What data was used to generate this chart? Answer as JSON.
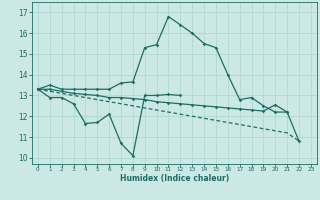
{
  "xlabel": "Humidex (Indice chaleur)",
  "x": [
    0,
    1,
    2,
    3,
    4,
    5,
    6,
    7,
    8,
    9,
    10,
    11,
    12,
    13,
    14,
    15,
    16,
    17,
    18,
    19,
    20,
    21,
    22,
    23
  ],
  "line1": [
    13.3,
    13.5,
    13.3,
    13.3,
    13.3,
    13.3,
    13.3,
    13.6,
    13.65,
    15.3,
    15.45,
    16.8,
    16.4,
    16.0,
    15.5,
    15.3,
    14.0,
    12.8,
    12.9,
    12.5,
    12.2,
    12.2,
    null,
    null
  ],
  "line2": [
    13.3,
    12.9,
    12.9,
    12.6,
    11.65,
    11.7,
    12.1,
    10.7,
    10.1,
    13.0,
    13.0,
    13.05,
    13.0,
    null,
    null,
    null,
    null,
    null,
    null,
    null,
    null,
    null,
    null,
    null
  ],
  "line3": [
    13.3,
    13.3,
    13.2,
    13.1,
    13.05,
    13.0,
    12.9,
    12.9,
    12.85,
    12.8,
    12.7,
    12.65,
    12.6,
    12.55,
    12.5,
    12.45,
    12.4,
    12.35,
    12.3,
    12.25,
    12.55,
    12.2,
    10.8,
    null
  ],
  "line4_dashed": [
    13.3,
    13.2,
    13.1,
    13.0,
    12.9,
    12.8,
    12.7,
    12.6,
    12.5,
    12.4,
    12.3,
    12.2,
    12.1,
    12.0,
    11.9,
    11.8,
    11.7,
    11.6,
    11.5,
    11.4,
    11.3,
    11.2,
    10.8,
    null
  ],
  "bg_color": "#cce8e4",
  "grid_color": "#b0d8d4",
  "line_color": "#1a6e64",
  "ylim": [
    9.7,
    17.5
  ],
  "xlim": [
    -0.5,
    23.5
  ],
  "yticks": [
    10,
    11,
    12,
    13,
    14,
    15,
    16,
    17
  ],
  "xticks": [
    0,
    1,
    2,
    3,
    4,
    5,
    6,
    7,
    8,
    9,
    10,
    11,
    12,
    13,
    14,
    15,
    16,
    17,
    18,
    19,
    20,
    21,
    22,
    23
  ]
}
